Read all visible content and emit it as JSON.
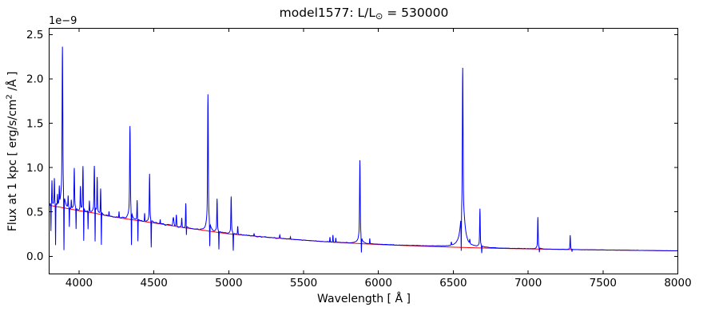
{
  "labels": {
    "title_pre": "model1577: L/L",
    "title_sun": "⊙",
    "title_post": " = 530000",
    "offset": "1e−9",
    "xlabel": "Wavelength [ Å ]",
    "ylabel_pre": "Flux at 1 kpc [ erg/s/cm",
    "ylabel_sup": "2",
    "ylabel_post": " /Å ]"
  },
  "chart_data": {
    "type": "line",
    "title": "model1577: L/L⊙ = 530000",
    "xlabel": "Wavelength [ Å ]",
    "ylabel": "Flux at 1 kpc [ erg/s/cm² /Å ]",
    "y_scale_factor": "1e-9",
    "xlim": [
      3800,
      8000
    ],
    "ylim": [
      -0.2,
      2.57
    ],
    "x_ticks": [
      4000,
      4500,
      5000,
      5500,
      6000,
      6500,
      7000,
      7500,
      8000
    ],
    "y_ticks": [
      0.0,
      0.5,
      1.0,
      1.5,
      2.0,
      2.5
    ],
    "x_tick_labels": [
      "4000",
      "4500",
      "5000",
      "5500",
      "6000",
      "6500",
      "7000",
      "7500",
      "8000"
    ],
    "y_tick_labels": [
      "0.0",
      "0.5",
      "1.0",
      "1.5",
      "2.0",
      "2.5"
    ],
    "grid": false,
    "legend": false,
    "series": [
      {
        "name": "model spectrum",
        "color": "#0000ff"
      },
      {
        "name": "continuum",
        "color": "#ff0000"
      }
    ],
    "continuum_points": [
      [
        3800,
        0.575
      ],
      [
        3900,
        0.545
      ],
      [
        4000,
        0.513
      ],
      [
        4100,
        0.487
      ],
      [
        4200,
        0.452
      ],
      [
        4300,
        0.425
      ],
      [
        4400,
        0.4
      ],
      [
        4500,
        0.375
      ],
      [
        4600,
        0.35
      ],
      [
        4700,
        0.322
      ],
      [
        4800,
        0.3
      ],
      [
        4900,
        0.275
      ],
      [
        5000,
        0.252
      ],
      [
        5100,
        0.238
      ],
      [
        5200,
        0.222
      ],
      [
        5300,
        0.208
      ],
      [
        5400,
        0.194
      ],
      [
        5500,
        0.181
      ],
      [
        5600,
        0.169
      ],
      [
        5700,
        0.158
      ],
      [
        5800,
        0.149
      ],
      [
        5900,
        0.14
      ],
      [
        6000,
        0.132
      ],
      [
        6100,
        0.125
      ],
      [
        6200,
        0.119
      ],
      [
        6300,
        0.113
      ],
      [
        6400,
        0.107
      ],
      [
        6500,
        0.102
      ],
      [
        6600,
        0.097
      ],
      [
        6700,
        0.0925
      ],
      [
        6800,
        0.0885
      ],
      [
        6900,
        0.0855
      ],
      [
        7000,
        0.0825
      ],
      [
        7100,
        0.0795
      ],
      [
        7200,
        0.077
      ],
      [
        7300,
        0.0745
      ],
      [
        7400,
        0.0725
      ],
      [
        7500,
        0.0705
      ],
      [
        7600,
        0.0685
      ],
      [
        7700,
        0.0665
      ],
      [
        7800,
        0.0645
      ],
      [
        7900,
        0.0625
      ],
      [
        8000,
        0.061
      ]
    ],
    "emission_lines": [
      [
        3819,
        0.28,
        2.2,
        5,
        0.12
      ],
      [
        3835,
        0.3,
        2.2,
        5,
        0.12
      ],
      [
        3856,
        0.12,
        2.0,
        0,
        0
      ],
      [
        3868,
        0.18,
        2.0,
        0,
        0
      ],
      [
        3889,
        1.82,
        3.0,
        9,
        0.22
      ],
      [
        3927,
        0.12,
        2.0,
        0,
        0
      ],
      [
        3948,
        0.1,
        2.0,
        0,
        0
      ],
      [
        3968,
        0.47,
        2.6,
        6,
        0.18
      ],
      [
        4009,
        0.26,
        2.2,
        5,
        0.12
      ],
      [
        4026,
        0.5,
        2.6,
        6,
        0.18
      ],
      [
        4069,
        0.12,
        2.0,
        0,
        0
      ],
      [
        4102,
        0.52,
        2.8,
        7,
        0.2
      ],
      [
        4121,
        0.4,
        2.4,
        5,
        0.15
      ],
      [
        4144,
        0.28,
        2.2,
        5,
        0.12
      ],
      [
        4200,
        0.05,
        2.0,
        0,
        0
      ],
      [
        4267,
        0.07,
        2.0,
        0,
        0
      ],
      [
        4340,
        1.06,
        3.0,
        8,
        0.22
      ],
      [
        4388,
        0.22,
        2.2,
        5,
        0.12
      ],
      [
        4438,
        0.09,
        2.0,
        0,
        0
      ],
      [
        4471,
        0.55,
        2.6,
        7,
        0.2
      ],
      [
        4542,
        0.05,
        2.0,
        0,
        0
      ],
      [
        4630,
        0.09,
        5.0,
        0,
        0
      ],
      [
        4650,
        0.13,
        3.0,
        0,
        0
      ],
      [
        4686,
        0.1,
        2.5,
        0,
        0
      ],
      [
        4713,
        0.28,
        2.4,
        5,
        0.15
      ],
      [
        4861,
        1.54,
        3.0,
        8,
        0.22
      ],
      [
        4922,
        0.37,
        2.5,
        6,
        0.18
      ],
      [
        5016,
        0.42,
        2.5,
        6,
        0.18
      ],
      [
        5060,
        0.09,
        2.4,
        0,
        0
      ],
      [
        5169,
        0.03,
        2.0,
        0,
        0
      ],
      [
        5341,
        0.035,
        2.5,
        0,
        0
      ],
      [
        5412,
        0.025,
        2.0,
        0,
        0
      ],
      [
        5676,
        0.055,
        2.2,
        0,
        0
      ],
      [
        5696,
        0.08,
        2.2,
        0,
        0
      ],
      [
        5715,
        0.05,
        2.0,
        0,
        0
      ],
      [
        5876,
        0.94,
        2.8,
        8,
        0.22
      ],
      [
        5942,
        0.06,
        2.0,
        0,
        0
      ],
      [
        6487,
        0.035,
        2.2,
        0,
        0
      ],
      [
        6563,
        2.02,
        3.2,
        14,
        0.28
      ],
      [
        6610,
        0.045,
        2.0,
        0,
        0
      ],
      [
        6678,
        0.43,
        2.5,
        6,
        0.18
      ],
      [
        7065,
        0.36,
        2.5,
        6,
        0.18
      ],
      [
        7281,
        0.16,
        2.3,
        5,
        0.12
      ]
    ],
    "absorption_lines": [
      [
        3812,
        0.28,
        1.5
      ],
      [
        3843,
        0.12,
        1.6
      ],
      [
        3899,
        0.08,
        1.8
      ],
      [
        3935,
        0.33,
        1.5
      ],
      [
        3980,
        0.3,
        1.5
      ],
      [
        4031,
        0.17,
        1.6
      ],
      [
        4060,
        0.3,
        1.5
      ],
      [
        4107,
        0.16,
        1.6
      ],
      [
        4149,
        0.12,
        1.6
      ],
      [
        4350,
        0.12,
        1.7
      ],
      [
        4393,
        0.17,
        1.5
      ],
      [
        4482,
        0.1,
        1.7
      ],
      [
        4717,
        0.24,
        1.4
      ],
      [
        4873,
        0.11,
        1.8
      ],
      [
        4934,
        0.08,
        1.5
      ],
      [
        5030,
        0.06,
        1.7
      ],
      [
        5886,
        0.04,
        1.7
      ],
      [
        6553,
        0.06,
        1.6
      ],
      [
        6690,
        0.035,
        1.6
      ],
      [
        7075,
        0.045,
        1.6
      ],
      [
        7293,
        0.05,
        1.4
      ]
    ],
    "noise": {
      "base_amp": 0.016,
      "decay": 1300,
      "floor": 0.0012,
      "grid_step": 4,
      "seed": 42
    },
    "blue_excess": {
      "center": 6500,
      "sigma": 500,
      "amp": 0.006
    }
  }
}
